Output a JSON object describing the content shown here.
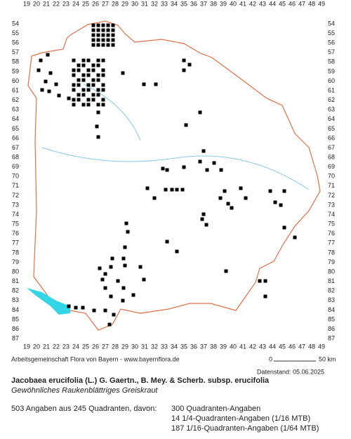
{
  "map": {
    "x_labels": [
      19,
      20,
      21,
      22,
      23,
      24,
      25,
      26,
      27,
      28,
      29,
      30,
      31,
      32,
      33,
      34,
      35,
      36,
      37,
      38,
      39,
      40,
      41,
      42,
      43,
      44,
      45,
      46,
      47,
      48,
      49
    ],
    "y_labels": [
      54,
      55,
      56,
      57,
      58,
      59,
      60,
      61,
      62,
      63,
      64,
      65,
      66,
      67,
      68,
      69,
      70,
      71,
      72,
      73,
      74,
      75,
      76,
      77,
      78,
      79,
      80,
      81,
      82,
      83,
      84,
      85,
      86,
      87
    ],
    "credit": "Arbeitsgemeinschaft Flora von Bayern - www.bayernflora.de",
    "scale_start": "0",
    "scale_end": "50 km",
    "date": "Datenstand: 05.06.2025",
    "title": "Jacobaea erucifolia (L.) G. Gaertn., B. Mey. & Scherb. subsp. erucifolia",
    "subtitle": "Gewöhnliches Raukenblättriges Greiskraut",
    "summary": "503 Angaben aus 245 Quadranten, davon:",
    "counts": [
      "300 Quadranten-Angaben",
      "14 1/4-Quadranten-Angaben (1/16 MTB)",
      "187 1/16-Quadranten-Angaben (1/64 MTB)"
    ]
  }
}
